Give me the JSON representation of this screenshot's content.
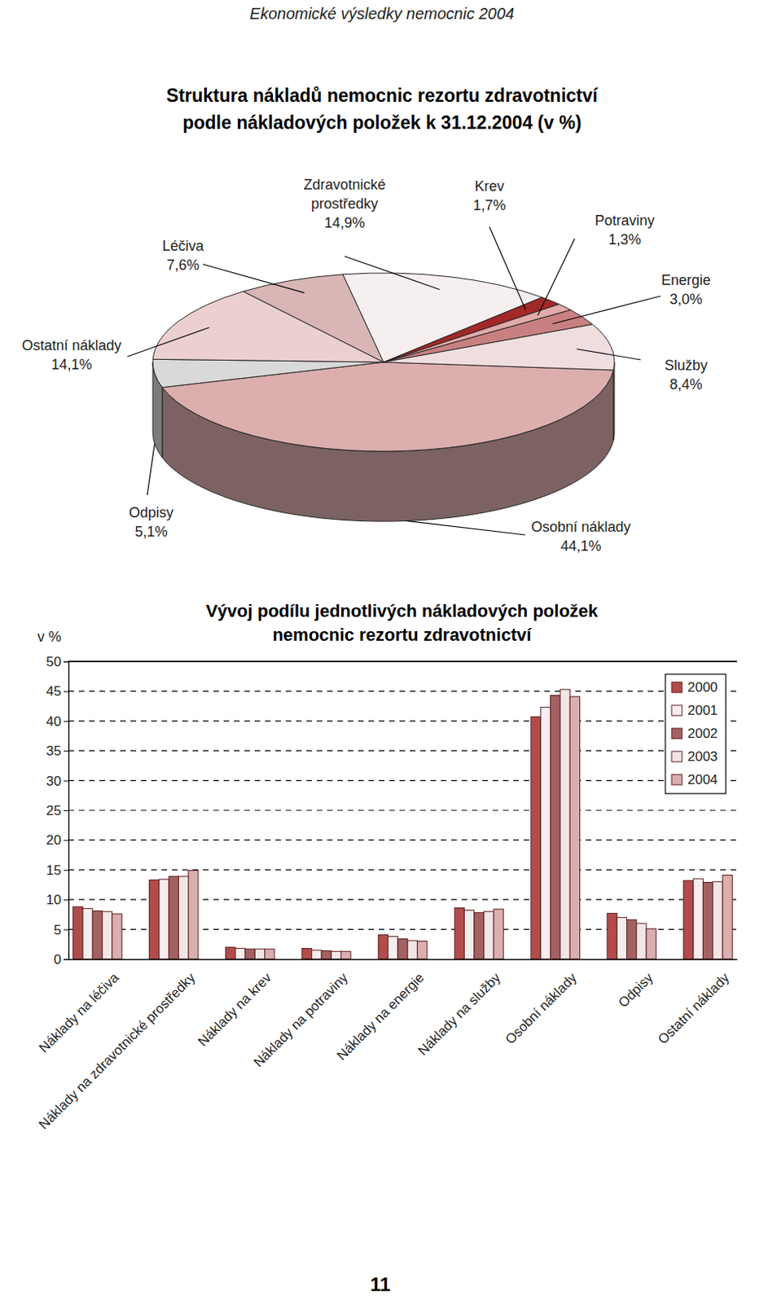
{
  "header": "Ekonomické výsledky nemocnic 2004",
  "page_number": "11",
  "chart_data": [
    {
      "type": "pie",
      "title": [
        "Struktura nákladů nemocnic rezortu zdravotnictví",
        "podle nákladových položek k 31.12.2004 (v %)"
      ],
      "categories": [
        "Osobní náklady",
        "Odpisy",
        "Ostatní náklady",
        "Léčiva",
        "Zdravotnické prostředky",
        "Krev",
        "Potraviny",
        "Energie",
        "Služby"
      ],
      "values": [
        44.1,
        5.1,
        14.1,
        7.6,
        14.9,
        1.7,
        1.3,
        3.0,
        8.4
      ],
      "value_labels": [
        "44,1%",
        "5,1%",
        "14,1%",
        "7,6%",
        "14,9%",
        "1,7%",
        "1,3%",
        "3,0%",
        "8,4%"
      ],
      "colors": [
        "#dcaeae",
        "#d9d9d9",
        "#ecd0d0",
        "#d9b6b6",
        "#f5efef",
        "#a32828",
        "#e2aaaa",
        "#c98080",
        "#f0dede"
      ],
      "data_labels": true
    },
    {
      "type": "bar",
      "title": [
        "Vývoj podílu jednotlivých nákladových položek",
        "nemocnic rezortu zdravotnictví"
      ],
      "y_label": "v %",
      "categories": [
        "Náklady na léčiva",
        "Náklady na zdravotnické prostředky",
        "Náklady na krev",
        "Náklady na potraviny",
        "Náklady na energie",
        "Náklady na služby",
        "Osobní náklady",
        "Odpisy",
        "Ostatní náklady"
      ],
      "series": [
        {
          "name": "2000",
          "color": "#b24c4c",
          "values": [
            8.8,
            13.3,
            2.0,
            1.8,
            4.1,
            8.6,
            40.7,
            7.7,
            13.2
          ]
        },
        {
          "name": "2001",
          "color": "#f6eeee",
          "values": [
            8.5,
            13.4,
            1.8,
            1.5,
            3.8,
            8.2,
            42.3,
            7.0,
            13.5
          ]
        },
        {
          "name": "2002",
          "color": "#a36262",
          "values": [
            8.1,
            13.9,
            1.7,
            1.4,
            3.4,
            7.8,
            44.3,
            6.6,
            12.9
          ]
        },
        {
          "name": "2003",
          "color": "#f1e6e6",
          "values": [
            8.0,
            13.9,
            1.7,
            1.3,
            3.1,
            8.0,
            45.3,
            6.0,
            13.0
          ]
        },
        {
          "name": "2004",
          "color": "#d9afaf",
          "values": [
            7.6,
            14.9,
            1.7,
            1.3,
            3.0,
            8.4,
            44.1,
            5.1,
            14.1
          ]
        }
      ],
      "ylim": [
        0,
        50
      ],
      "yticks": [
        0,
        5,
        10,
        15,
        20,
        25,
        30,
        35,
        40,
        45,
        50
      ],
      "grid": true,
      "legend": "top-right"
    }
  ]
}
